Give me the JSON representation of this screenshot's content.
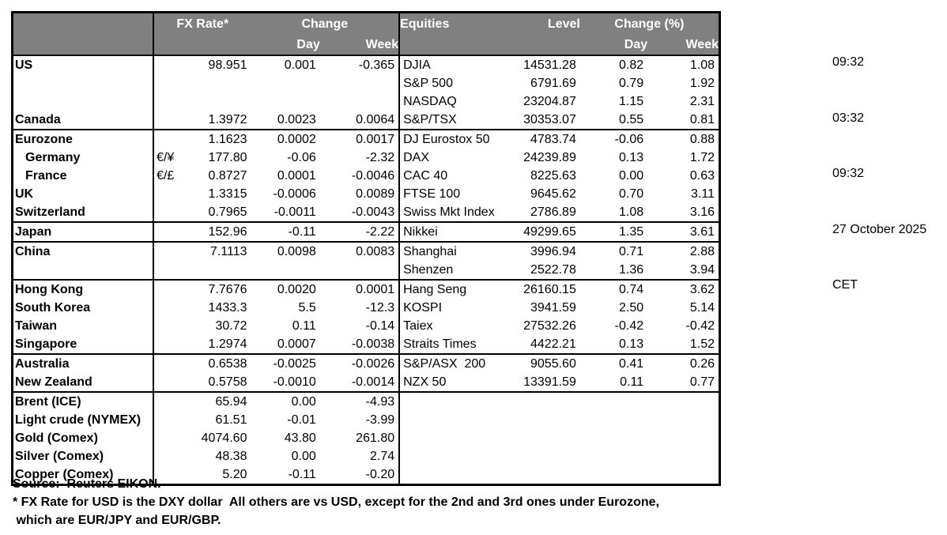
{
  "meta": {
    "timestamps": [
      "09:32",
      "03:32",
      "09:32",
      "27 October 2025",
      "CET"
    ]
  },
  "table": {
    "header": {
      "fx_rate": "FX Rate*",
      "change": "Change",
      "day": "Day",
      "week": "Week",
      "equities": "Equities",
      "level": "Level",
      "change_pct": "Change (%)"
    },
    "rows": [
      {
        "name": "US",
        "sym": "",
        "rate": "98.951",
        "day": "0.001",
        "week": "-0.365",
        "eq": "DJIA",
        "level": "14531.28",
        "eq_day": "0.82",
        "eq_week": "1.08",
        "sep": false,
        "indent": false
      },
      {
        "name": "",
        "sym": "",
        "rate": "",
        "day": "",
        "week": "",
        "eq": "S&P 500",
        "level": "6791.69",
        "eq_day": "0.79",
        "eq_week": "1.92",
        "sep": false,
        "indent": false
      },
      {
        "name": "",
        "sym": "",
        "rate": "",
        "day": "",
        "week": "",
        "eq": "NASDAQ",
        "level": "23204.87",
        "eq_day": "1.15",
        "eq_week": "2.31",
        "sep": false,
        "indent": false
      },
      {
        "name": "Canada",
        "sym": "",
        "rate": "1.3972",
        "day": "0.0023",
        "week": "0.0064",
        "eq": "S&P/TSX",
        "level": "30353.07",
        "eq_day": "0.55",
        "eq_week": "0.81",
        "sep": false,
        "indent": false
      },
      {
        "name": "Eurozone",
        "sym": "",
        "rate": "1.1623",
        "day": "0.0002",
        "week": "0.0017",
        "eq": "DJ Eurostox 50",
        "level": "4783.74",
        "eq_day": "-0.06",
        "eq_week": "0.88",
        "sep": true,
        "indent": false
      },
      {
        "name": "Germany",
        "sym": "€/¥",
        "rate": "177.80",
        "day": "-0.06",
        "week": "-2.32",
        "eq": "DAX",
        "level": "24239.89",
        "eq_day": "0.13",
        "eq_week": "1.72",
        "sep": false,
        "indent": true
      },
      {
        "name": "France",
        "sym": "€/£",
        "rate": "0.8727",
        "day": "0.0001",
        "week": "-0.0046",
        "eq": "CAC 40",
        "level": "8225.63",
        "eq_day": "0.00",
        "eq_week": "0.63",
        "sep": false,
        "indent": true
      },
      {
        "name": "UK",
        "sym": "",
        "rate": "1.3315",
        "day": "-0.0006",
        "week": "0.0089",
        "eq": "FTSE 100",
        "level": "9645.62",
        "eq_day": "0.70",
        "eq_week": "3.11",
        "sep": false,
        "indent": false
      },
      {
        "name": "Switzerland",
        "sym": "",
        "rate": "0.7965",
        "day": "-0.0011",
        "week": "-0.0043",
        "eq": "Swiss Mkt Index",
        "level": "2786.89",
        "eq_day": "1.08",
        "eq_week": "3.16",
        "sep": false,
        "indent": false
      },
      {
        "name": "Japan",
        "sym": "",
        "rate": "152.96",
        "day": "-0.11",
        "week": "-2.22",
        "eq": "Nikkei",
        "level": "49299.65",
        "eq_day": "1.35",
        "eq_week": "3.61",
        "sep": true,
        "indent": false
      },
      {
        "name": "China",
        "sym": "",
        "rate": "7.1113",
        "day": "0.0098",
        "week": "0.0083",
        "eq": "Shanghai",
        "level": "3996.94",
        "eq_day": "0.71",
        "eq_week": "2.88",
        "sep": true,
        "indent": false
      },
      {
        "name": "",
        "sym": "",
        "rate": "",
        "day": "",
        "week": "",
        "eq": "Shenzen",
        "level": "2522.78",
        "eq_day": "1.36",
        "eq_week": "3.94",
        "sep": false,
        "indent": false
      },
      {
        "name": "Hong Kong",
        "sym": "",
        "rate": "7.7676",
        "day": "0.0020",
        "week": "0.0001",
        "eq": "Hang Seng",
        "level": "26160.15",
        "eq_day": "0.74",
        "eq_week": "3.62",
        "sep": true,
        "indent": false
      },
      {
        "name": "South Korea",
        "sym": "",
        "rate": "1433.3",
        "day": "5.5",
        "week": "-12.3",
        "eq": "KOSPI",
        "level": "3941.59",
        "eq_day": "2.50",
        "eq_week": "5.14",
        "sep": false,
        "indent": false
      },
      {
        "name": "Taiwan",
        "sym": "",
        "rate": "30.72",
        "day": "0.11",
        "week": "-0.14",
        "eq": "Taiex",
        "level": "27532.26",
        "eq_day": "-0.42",
        "eq_week": "-0.42",
        "sep": false,
        "indent": false
      },
      {
        "name": "Singapore",
        "sym": "",
        "rate": "1.2974",
        "day": "0.0007",
        "week": "-0.0038",
        "eq": "Straits Times",
        "level": "4422.21",
        "eq_day": "0.13",
        "eq_week": "1.52",
        "sep": false,
        "indent": false
      },
      {
        "name": "Australia",
        "sym": "",
        "rate": "0.6538",
        "day": "-0.0025",
        "week": "-0.0026",
        "eq": "S&P/ASX  200",
        "level": "9055.60",
        "eq_day": "0.41",
        "eq_week": "0.26",
        "sep": true,
        "indent": false
      },
      {
        "name": "New Zealand",
        "sym": "",
        "rate": "0.5758",
        "day": "-0.0010",
        "week": "-0.0014",
        "eq": "NZX 50",
        "level": "13391.59",
        "eq_day": "0.11",
        "eq_week": "0.77",
        "sep": false,
        "indent": false
      },
      {
        "name": "Brent (ICE)",
        "sym": "",
        "rate": "65.94",
        "day": "0.00",
        "week": "-4.93",
        "eq": "",
        "level": "",
        "eq_day": "",
        "eq_week": "",
        "sep": true,
        "indent": false
      },
      {
        "name": "Light crude (NYMEX)",
        "sym": "",
        "rate": "61.51",
        "day": "-0.01",
        "week": "-3.99",
        "eq": "",
        "level": "",
        "eq_day": "",
        "eq_week": "",
        "sep": false,
        "indent": false
      },
      {
        "name": "Gold (Comex)",
        "sym": "",
        "rate": "4074.60",
        "day": "43.80",
        "week": "261.80",
        "eq": "",
        "level": "",
        "eq_day": "",
        "eq_week": "",
        "sep": false,
        "indent": false
      },
      {
        "name": "Silver (Comex)",
        "sym": "",
        "rate": "48.38",
        "day": "0.00",
        "week": "2.74",
        "eq": "",
        "level": "",
        "eq_day": "",
        "eq_week": "",
        "sep": false,
        "indent": false
      },
      {
        "name": "Copper (Comex)",
        "sym": "",
        "rate": "5.20",
        "day": "-0.11",
        "week": "-0.20",
        "eq": "",
        "level": "",
        "eq_day": "",
        "eq_week": "",
        "sep": false,
        "indent": false
      }
    ]
  },
  "footer": {
    "source": "Source:  Reuters EIKON.",
    "note_line1": "* FX Rate for USD is the DXY dollar  All others are vs USD, except for the 2nd and 3rd ones under Eurozone,",
    "note_line2": " which are EUR/JPY and EUR/GBP."
  },
  "colors": {
    "header_bg": "#808080",
    "header_text": "#ffffff",
    "border": "#000000"
  }
}
